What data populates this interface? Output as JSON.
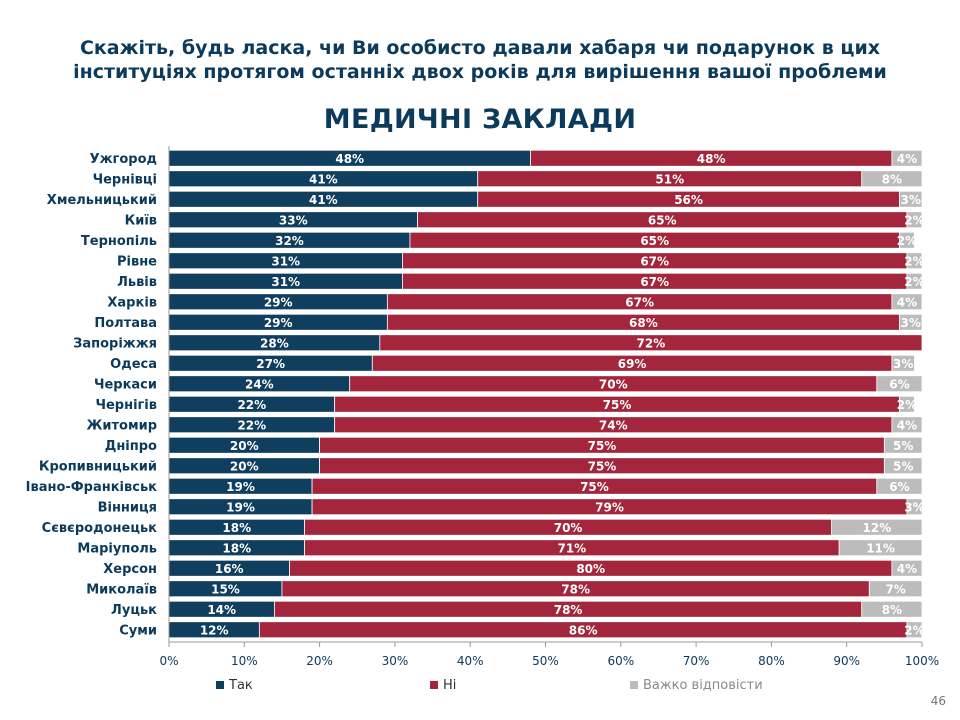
{
  "header": {
    "line1": "Скажіть, будь ласка, чи Ви особисто давали хабаря чи подарунок в цих",
    "line2": "інституціях протягом останніх двох років для вирішення вашої проблеми"
  },
  "chart_data": {
    "type": "bar",
    "orientation": "horizontal",
    "stacked": true,
    "title": "МЕДИЧНІ ЗАКЛАДИ",
    "categories": [
      "Ужгород",
      "Чернівці",
      "Хмельницький",
      "Київ",
      "Тернопіль",
      "Рівне",
      "Львів",
      "Харків",
      "Полтава",
      "Запоріжжя",
      "Одеса",
      "Черкаси",
      "Чернігів",
      "Житомир",
      "Дніпро",
      "Кропивницький",
      "Івано-Франківськ",
      "Вінниця",
      "Сєвєродонецьк",
      "Маріуполь",
      "Херсон",
      "Миколаїв",
      "Луцьк",
      "Суми"
    ],
    "series": [
      {
        "name": "Так",
        "color": "#0f3e5e",
        "label_color": "#ffffff",
        "values": [
          48,
          41,
          41,
          33,
          32,
          31,
          31,
          29,
          29,
          28,
          27,
          24,
          22,
          22,
          20,
          20,
          19,
          19,
          18,
          18,
          16,
          15,
          14,
          12
        ]
      },
      {
        "name": "Ні",
        "color": "#a3263c",
        "label_color": "#ffffff",
        "values": [
          48,
          51,
          56,
          65,
          65,
          67,
          67,
          67,
          68,
          72,
          69,
          70,
          75,
          74,
          75,
          75,
          75,
          79,
          70,
          71,
          80,
          78,
          78,
          86
        ]
      },
      {
        "name": "Важко відповісти",
        "color": "#bcbcbc",
        "label_color": "#ffffff",
        "values": [
          4,
          8,
          3,
          2,
          2,
          2,
          2,
          4,
          3,
          0,
          3,
          6,
          2,
          4,
          5,
          5,
          6,
          3,
          12,
          11,
          4,
          7,
          8,
          2
        ]
      }
    ],
    "xlim": [
      0,
      100
    ],
    "x_ticks": [
      "0%",
      "10%",
      "20%",
      "30%",
      "40%",
      "50%",
      "60%",
      "70%",
      "80%",
      "90%",
      "100%"
    ],
    "grid": false,
    "legend_position": "bottom"
  },
  "legend_labels": [
    "Так",
    "Ні",
    "Важко відповісти"
  ],
  "page_number": "46"
}
